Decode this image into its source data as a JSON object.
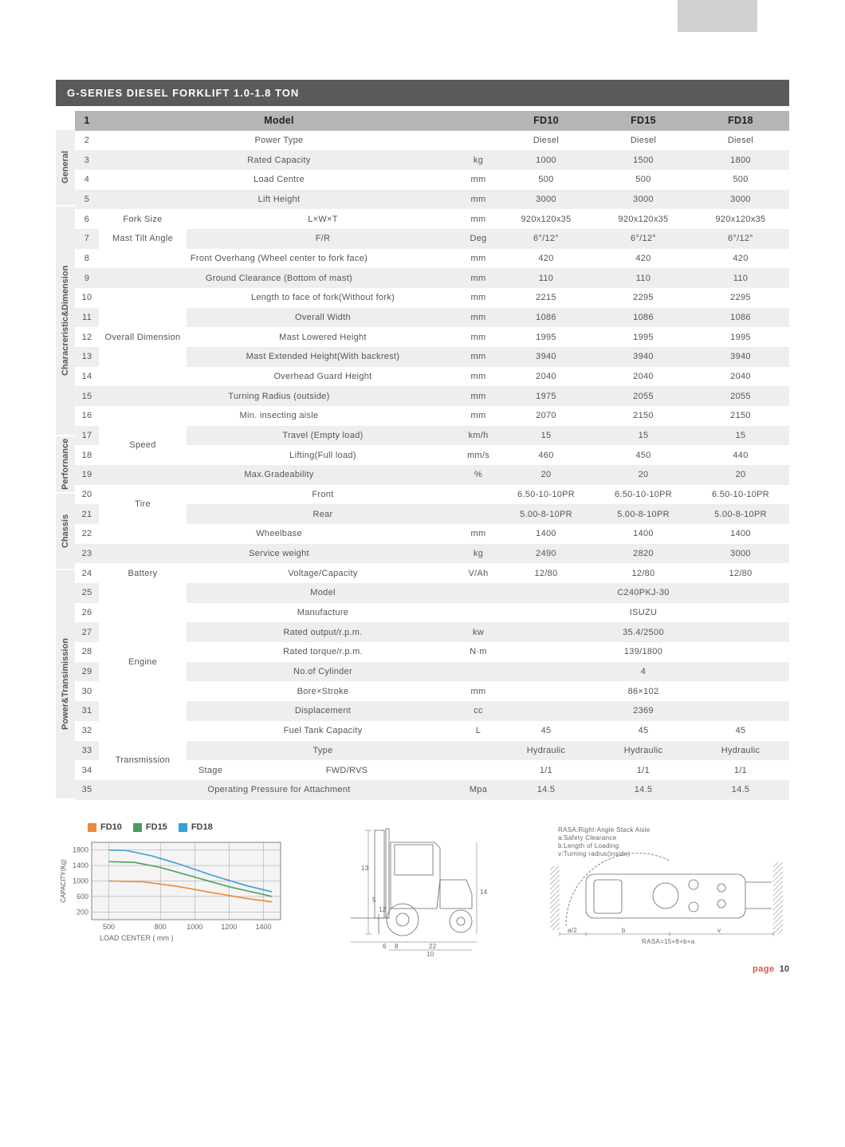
{
  "title": "G-SERIES DIESEL FORKLIFT 1.0-1.8 TON",
  "header": {
    "model": "Model",
    "cols": [
      "FD10",
      "FD15",
      "FD18"
    ]
  },
  "categories": [
    {
      "label": "General",
      "rows": 4
    },
    {
      "label": "Characreristic&Dimension",
      "rows": 12
    },
    {
      "label": "Perfornance",
      "rows": 3
    },
    {
      "label": "Chassis",
      "rows": 4
    },
    {
      "label": "Power&Transimission",
      "rows": 12
    }
  ],
  "rows": [
    {
      "n": "2",
      "lbl": "Power Type",
      "unit": "",
      "v": [
        "Diesel",
        "Diesel",
        "Diesel"
      ]
    },
    {
      "n": "3",
      "lbl": "Rated Capacity",
      "unit": "kg",
      "v": [
        "1000",
        "1500",
        "1800"
      ]
    },
    {
      "n": "4",
      "lbl": "Load Centre",
      "unit": "mm",
      "v": [
        "500",
        "500",
        "500"
      ]
    },
    {
      "n": "5",
      "lbl": "Lift Height",
      "unit": "mm",
      "v": [
        "3000",
        "3000",
        "3000"
      ]
    },
    {
      "n": "6",
      "sub": "Fork Size",
      "lbl": "L×W×T",
      "unit": "mm",
      "v": [
        "920x120x35",
        "920x120x35",
        "920x120x35"
      ]
    },
    {
      "n": "7",
      "sub": "Mast Tilt Angle",
      "lbl": "F/R",
      "unit": "Deg",
      "v": [
        "6°/12°",
        "6°/12°",
        "6°/12°"
      ]
    },
    {
      "n": "8",
      "lbl": "Front Overhang (Wheel center to fork face)",
      "unit": "mm",
      "v": [
        "420",
        "420",
        "420"
      ]
    },
    {
      "n": "9",
      "lbl": "Ground Clearance (Bottom of mast)",
      "unit": "mm",
      "v": [
        "110",
        "110",
        "110"
      ]
    },
    {
      "n": "10",
      "sub": "Overall Dimension",
      "subrows": 5,
      "lbl": "Length to face of fork(Without fork)",
      "unit": "mm",
      "v": [
        "2215",
        "2295",
        "2295"
      ]
    },
    {
      "n": "11",
      "lbl": "Overall Width",
      "unit": "mm",
      "v": [
        "1086",
        "1086",
        "1086"
      ]
    },
    {
      "n": "12",
      "lbl": "Mast Lowered Height",
      "unit": "mm",
      "v": [
        "1995",
        "1995",
        "1995"
      ]
    },
    {
      "n": "13",
      "lbl": "Mast Extended Height(With backrest)",
      "unit": "mm",
      "v": [
        "3940",
        "3940",
        "3940"
      ]
    },
    {
      "n": "14",
      "lbl": "Overhead Guard Height",
      "unit": "mm",
      "v": [
        "2040",
        "2040",
        "2040"
      ]
    },
    {
      "n": "15",
      "lbl": "Turning Radius (outside)",
      "unit": "mm",
      "v": [
        "1975",
        "2055",
        "2055"
      ]
    },
    {
      "n": "16",
      "lbl": "Min. insecting aisle",
      "unit": "mm",
      "v": [
        "2070",
        "2150",
        "2150"
      ]
    },
    {
      "n": "17",
      "sub": "Speed",
      "subrows": 2,
      "lbl": "Travel (Empty load)",
      "unit": "km/h",
      "v": [
        "15",
        "15",
        "15"
      ]
    },
    {
      "n": "18",
      "lbl": "Lifting(Full load)",
      "unit": "mm/s",
      "v": [
        "460",
        "450",
        "440"
      ]
    },
    {
      "n": "19",
      "lbl": "Max.Gradeability",
      "unit": "%",
      "v": [
        "20",
        "20",
        "20"
      ]
    },
    {
      "n": "20",
      "sub": "Tire",
      "subrows": 2,
      "lbl": "Front",
      "unit": "",
      "v": [
        "6.50-10-10PR",
        "6.50-10-10PR",
        "6.50-10-10PR"
      ]
    },
    {
      "n": "21",
      "lbl": "Rear",
      "unit": "",
      "v": [
        "5.00-8-10PR",
        "5.00-8-10PR",
        "5.00-8-10PR"
      ]
    },
    {
      "n": "22",
      "lbl": "Wheelbase",
      "unit": "mm",
      "v": [
        "1400",
        "1400",
        "1400"
      ]
    },
    {
      "n": "23",
      "lbl": "Service weight",
      "unit": "kg",
      "v": [
        "2490",
        "2820",
        "3000"
      ]
    },
    {
      "n": "24",
      "sub": "Battery",
      "lbl": "Voltage/Capacity",
      "unit": "V/Ah",
      "v": [
        "12/80",
        "12/80",
        "12/80"
      ]
    },
    {
      "n": "25",
      "sub": "Engine",
      "subrows": 8,
      "lbl": "Model",
      "unit": "",
      "merged": "C240PKJ-30"
    },
    {
      "n": "26",
      "lbl": "Manufacture",
      "unit": "",
      "merged": "ISUZU"
    },
    {
      "n": "27",
      "lbl": "Rated output/r.p.m.",
      "unit": "kw",
      "merged": "35.4/2500"
    },
    {
      "n": "28",
      "lbl": "Rated torque/r.p.m.",
      "unit": "N·m",
      "merged": "139/1800"
    },
    {
      "n": "29",
      "lbl": "No.of Cylinder",
      "unit": "",
      "merged": "4"
    },
    {
      "n": "30",
      "lbl": "Bore×Stroke",
      "unit": "mm",
      "merged": "86×102"
    },
    {
      "n": "31",
      "lbl": "Displacement",
      "unit": "cc",
      "merged": "2369"
    },
    {
      "n": "32",
      "lbl": "Fuel Tank Capacity",
      "unit": "L",
      "v": [
        "45",
        "45",
        "45"
      ]
    },
    {
      "n": "33",
      "sub": "Transmission",
      "subrows": 2,
      "lbl": "Type",
      "unit": "",
      "v": [
        "Hydraulic",
        "Hydraulic",
        "Hydraulic"
      ]
    },
    {
      "n": "34",
      "sub2": "Stage",
      "lbl": "FWD/RVS",
      "unit": "",
      "v": [
        "1/1",
        "1/1",
        "1/1"
      ]
    },
    {
      "n": "35",
      "lbl": "Operating Pressure for Attachment",
      "unit": "Mpa",
      "v": [
        "14.5",
        "14.5",
        "14.5"
      ]
    }
  ],
  "chart": {
    "legend": [
      {
        "label": "FD10",
        "color": "#e98b3a"
      },
      {
        "label": "FD15",
        "color": "#4a9b5f"
      },
      {
        "label": "FD18",
        "color": "#3aa0d8"
      }
    ],
    "ylabel": "CAPACITY(Kg)",
    "xlabel": "LOAD CENTER ( mm )",
    "xaxis": [
      500,
      800,
      1000,
      1200,
      1400
    ],
    "xlim": [
      400,
      1500
    ],
    "yaxis": [
      200,
      600,
      1000,
      1400,
      1800
    ],
    "ylim": [
      0,
      2000
    ],
    "grid_color": "#888",
    "bg_color": "#f4f4f4",
    "series": {
      "FD10": [
        [
          500,
          1000
        ],
        [
          700,
          980
        ],
        [
          900,
          860
        ],
        [
          1100,
          700
        ],
        [
          1300,
          550
        ],
        [
          1450,
          460
        ]
      ],
      "FD15": [
        [
          500,
          1500
        ],
        [
          650,
          1480
        ],
        [
          800,
          1350
        ],
        [
          1000,
          1100
        ],
        [
          1200,
          850
        ],
        [
          1450,
          600
        ]
      ],
      "FD18": [
        [
          500,
          1800
        ],
        [
          600,
          1790
        ],
        [
          750,
          1650
        ],
        [
          900,
          1450
        ],
        [
          1100,
          1150
        ],
        [
          1300,
          880
        ],
        [
          1450,
          720
        ]
      ]
    }
  },
  "diagram_notes": {
    "rasa1": "RASA:Right-Angle Stack Aisle",
    "rasa2": "a:Safety Clearance",
    "rasa3": "b:Length of Loading",
    "rasa4": "v:Turning radius(inside)",
    "formula": "RASA=15+8+b+a"
  },
  "side_dims": [
    "13",
    "5",
    "12",
    "14",
    "6",
    "8",
    "22",
    "10"
  ],
  "top_dims": [
    "a/2",
    "b",
    "v"
  ],
  "footer": {
    "page_label": "page",
    "page_num": "10"
  }
}
